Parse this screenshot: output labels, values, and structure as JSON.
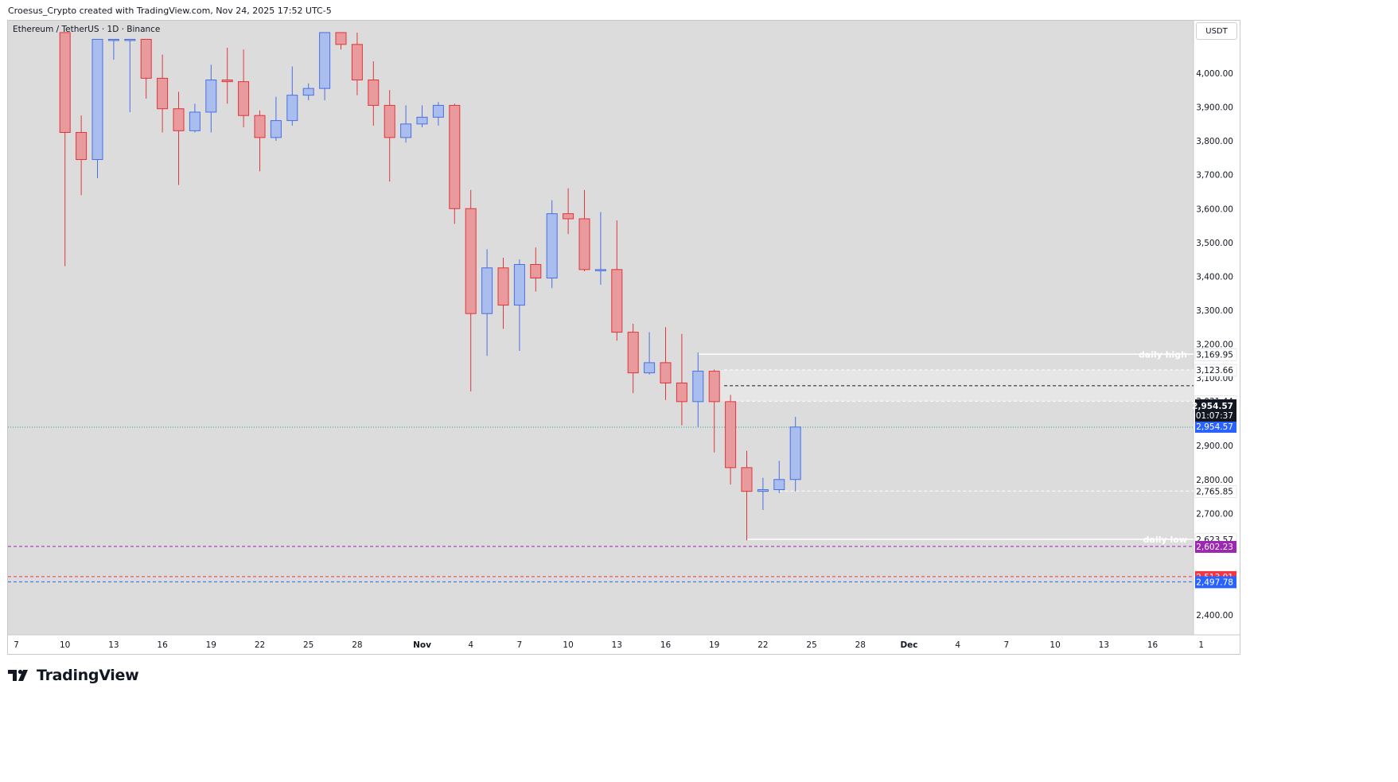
{
  "header": {
    "caption": "Croesus_Crypto created with TradingView.com, Nov 24, 2025 17:52 UTC-5"
  },
  "symbol": {
    "label": "Ethereum / TetherUS · 1D · Binance"
  },
  "currency": "USDT",
  "footer": {
    "brand": "TradingView"
  },
  "colors": {
    "up": "#4a6fe3",
    "up_fill": "#a9bdef",
    "down": "#e0353b",
    "down_fill": "#e89a9c",
    "background": "#dcdcdc"
  },
  "chart_data": {
    "type": "candlestick",
    "title": "",
    "price_axis": {
      "ylim": [
        2320,
        4080
      ],
      "ticks": [
        2400,
        2500,
        2600,
        2700,
        2800,
        2900,
        3000,
        3100,
        3200,
        3300,
        3400,
        3500,
        3600,
        3700,
        3800,
        3900,
        4000
      ],
      "tick_labels_shown": [
        "4,000.00",
        "3,900.00",
        "3,800.00",
        "3,700.00",
        "3,600.00",
        "3,500.00",
        "3,400.00",
        "3,300.00",
        "3,200.00",
        "3,100.00",
        "2,900.00",
        "2,800.00",
        "2,700.00",
        "2,400.00"
      ]
    },
    "time_axis": {
      "labels": [
        "7",
        "10",
        "13",
        "16",
        "19",
        "22",
        "25",
        "28",
        "Nov",
        "4",
        "7",
        "10",
        "13",
        "16",
        "19",
        "22",
        "25",
        "28",
        "Dec",
        "4",
        "7",
        "10",
        "13",
        "16",
        "1"
      ],
      "label_day_index": [
        0,
        3,
        6,
        9,
        12,
        15,
        18,
        21,
        25,
        28,
        31,
        34,
        37,
        40,
        43,
        46,
        49,
        52,
        55,
        58,
        61,
        64,
        67,
        70,
        73
      ]
    },
    "candles": [
      {
        "i": 3,
        "o": 4120,
        "h": 4120,
        "l": 3430,
        "c": 3825
      },
      {
        "i": 4,
        "o": 3825,
        "h": 3875,
        "l": 3640,
        "c": 3745
      },
      {
        "i": 5,
        "o": 3745,
        "h": 4100,
        "l": 3690,
        "c": 4100
      },
      {
        "i": 6,
        "o": 4100,
        "h": 4100,
        "l": 4040,
        "c": 4100
      },
      {
        "i": 7,
        "o": 4100,
        "h": 4100,
        "l": 3885,
        "c": 4100
      },
      {
        "i": 8,
        "o": 4100,
        "h": 4100,
        "l": 3925,
        "c": 3985
      },
      {
        "i": 9,
        "o": 3985,
        "h": 4055,
        "l": 3825,
        "c": 3895
      },
      {
        "i": 10,
        "o": 3895,
        "h": 3945,
        "l": 3670,
        "c": 3830
      },
      {
        "i": 11,
        "o": 3830,
        "h": 3910,
        "l": 3825,
        "c": 3885
      },
      {
        "i": 12,
        "o": 3885,
        "h": 4025,
        "l": 3825,
        "c": 3980
      },
      {
        "i": 13,
        "o": 3980,
        "h": 4075,
        "l": 3910,
        "c": 3975
      },
      {
        "i": 14,
        "o": 3975,
        "h": 4070,
        "l": 3840,
        "c": 3875
      },
      {
        "i": 15,
        "o": 3875,
        "h": 3890,
        "l": 3710,
        "c": 3810
      },
      {
        "i": 16,
        "o": 3810,
        "h": 3930,
        "l": 3800,
        "c": 3860
      },
      {
        "i": 17,
        "o": 3860,
        "h": 4020,
        "l": 3845,
        "c": 3935
      },
      {
        "i": 18,
        "o": 3935,
        "h": 3970,
        "l": 3920,
        "c": 3955
      },
      {
        "i": 19,
        "o": 3955,
        "h": 4120,
        "l": 3920,
        "c": 4120
      },
      {
        "i": 20,
        "o": 4120,
        "h": 4120,
        "l": 4070,
        "c": 4085
      },
      {
        "i": 21,
        "o": 4085,
        "h": 4120,
        "l": 3935,
        "c": 3980
      },
      {
        "i": 22,
        "o": 3980,
        "h": 4035,
        "l": 3845,
        "c": 3905
      },
      {
        "i": 23,
        "o": 3905,
        "h": 3950,
        "l": 3680,
        "c": 3810
      },
      {
        "i": 24,
        "o": 3810,
        "h": 3905,
        "l": 3795,
        "c": 3850
      },
      {
        "i": 25,
        "o": 3850,
        "h": 3905,
        "l": 3840,
        "c": 3870
      },
      {
        "i": 26,
        "o": 3870,
        "h": 3915,
        "l": 3845,
        "c": 3905
      },
      {
        "i": 27,
        "o": 3905,
        "h": 3910,
        "l": 3555,
        "c": 3600
      },
      {
        "i": 28,
        "o": 3600,
        "h": 3655,
        "l": 3060,
        "c": 3290
      },
      {
        "i": 29,
        "o": 3290,
        "h": 3480,
        "l": 3165,
        "c": 3425
      },
      {
        "i": 30,
        "o": 3425,
        "h": 3455,
        "l": 3245,
        "c": 3315
      },
      {
        "i": 31,
        "o": 3315,
        "h": 3450,
        "l": 3180,
        "c": 3435
      },
      {
        "i": 32,
        "o": 3435,
        "h": 3485,
        "l": 3355,
        "c": 3395
      },
      {
        "i": 33,
        "o": 3395,
        "h": 3625,
        "l": 3365,
        "c": 3585
      },
      {
        "i": 34,
        "o": 3585,
        "h": 3660,
        "l": 3525,
        "c": 3570
      },
      {
        "i": 35,
        "o": 3570,
        "h": 3655,
        "l": 3415,
        "c": 3420
      },
      {
        "i": 36,
        "o": 3420,
        "h": 3590,
        "l": 3375,
        "c": 3420
      },
      {
        "i": 37,
        "o": 3420,
        "h": 3565,
        "l": 3210,
        "c": 3235
      },
      {
        "i": 38,
        "o": 3235,
        "h": 3260,
        "l": 3055,
        "c": 3115
      },
      {
        "i": 39,
        "o": 3115,
        "h": 3235,
        "l": 3110,
        "c": 3145
      },
      {
        "i": 40,
        "o": 3145,
        "h": 3250,
        "l": 3035,
        "c": 3085
      },
      {
        "i": 41,
        "o": 3085,
        "h": 3230,
        "l": 2960,
        "c": 3030
      },
      {
        "i": 42,
        "o": 3030,
        "h": 3175,
        "l": 2955,
        "c": 3120
      },
      {
        "i": 43,
        "o": 3120,
        "h": 3125,
        "l": 2880,
        "c": 3030
      },
      {
        "i": 44,
        "o": 3030,
        "h": 3050,
        "l": 2785,
        "c": 2835
      },
      {
        "i": 45,
        "o": 2835,
        "h": 2885,
        "l": 2620,
        "c": 2765
      },
      {
        "i": 46,
        "o": 2765,
        "h": 2805,
        "l": 2710,
        "c": 2770
      },
      {
        "i": 47,
        "o": 2770,
        "h": 2855,
        "l": 2760,
        "c": 2800
      },
      {
        "i": 48,
        "o": 2800,
        "h": 2985,
        "l": 2765,
        "c": 2955
      }
    ],
    "levels": [
      {
        "name": "daily high",
        "value": 3169.95,
        "label": "3,169.95",
        "style": "solid",
        "color": "#ffffff",
        "badge_bg": "#ffffff",
        "badge_fg": "#131722",
        "text": "daily high"
      },
      {
        "name": "3123",
        "value": 3123.66,
        "label": "3,123.66",
        "style": "dashed",
        "color": "#ffffff",
        "badge_bg": "#ffffff",
        "badge_fg": "#131722"
      },
      {
        "name": "3075",
        "value": 3077,
        "label": "",
        "style": "dashed",
        "color": "#131722"
      },
      {
        "name": "3031",
        "value": 3031.44,
        "label": "3,031.44",
        "style": "dashed",
        "color": "#ffffff",
        "badge_bg": "#ffffff",
        "badge_fg": "#131722"
      },
      {
        "name": "current",
        "value": 2954.57,
        "label": "2,954.57",
        "style": "dotted",
        "color": "#26a69a",
        "badge_bg": "#2962ff",
        "badge_fg": "#ffffff"
      },
      {
        "name": "2765",
        "value": 2765.85,
        "label": "2,765.85",
        "style": "dashed",
        "color": "#ffffff",
        "badge_bg": "#ffffff",
        "badge_fg": "#131722"
      },
      {
        "name": "daily low",
        "value": 2623.57,
        "label": "2,623.57",
        "style": "solid",
        "color": "#ffffff",
        "badge_bg": "#ffffff",
        "badge_fg": "#131722",
        "text": "daily low"
      },
      {
        "name": "purple",
        "value": 2602.23,
        "label": "2,602.23",
        "style": "dashed",
        "color": "#9c27b0",
        "badge_bg": "#9c27b0",
        "badge_fg": "#ffffff"
      },
      {
        "name": "red",
        "value": 2513.01,
        "label": "2,513.01",
        "style": "dashed",
        "color": "#f23645",
        "badge_bg": "#f23645",
        "badge_fg": "#ffffff"
      },
      {
        "name": "blue",
        "value": 2497.78,
        "label": "2,497.78",
        "style": "dashed",
        "color": "#2962ff",
        "badge_bg": "#2962ff",
        "badge_fg": "#ffffff"
      }
    ],
    "last_price": {
      "value": 2954.57,
      "label": "2,954.57",
      "countdown": "01:07:37"
    }
  }
}
